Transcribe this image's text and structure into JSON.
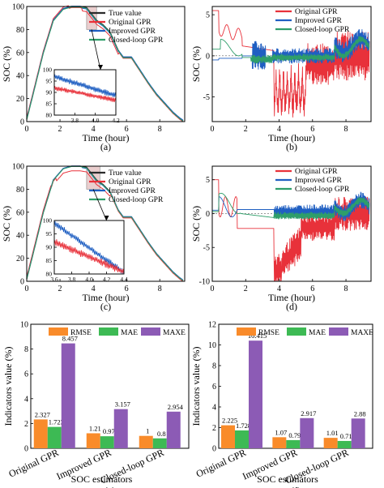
{
  "colors": {
    "true": "#2b2b2b",
    "orig": "#e8313a",
    "imp": "#1f5fc2",
    "cl": "#2e9e6a",
    "rmse": "#f98b2a",
    "mae": "#3dba54",
    "maxe": "#8c5bb5",
    "zoomfill": "#d9a6a6"
  },
  "chart_data": [
    {
      "panel": "(a)",
      "type": "line",
      "xlabel": "Time (hour)",
      "ylabel": "SOC (%)",
      "xlim": [
        0,
        9.5
      ],
      "ylim": [
        0,
        100
      ],
      "xticks": [
        "0",
        "2",
        "4",
        "6",
        "8"
      ],
      "yticks": [
        "0",
        "20",
        "40",
        "60",
        "80",
        "100"
      ],
      "legend_position": "top-right",
      "profile_x": [
        0,
        0.4,
        1.0,
        1.6,
        2.2,
        2.7,
        3.2,
        3.6,
        4.2,
        4.6,
        5.0,
        5.5,
        5.8,
        6.3,
        6.8,
        7.3,
        7.8,
        8.3,
        8.8,
        9.2,
        9.4
      ],
      "profile_y": [
        2,
        25,
        60,
        88,
        98,
        100,
        100,
        99,
        88,
        84,
        78,
        62,
        56,
        56,
        45,
        34,
        24,
        16,
        8,
        3,
        1
      ],
      "series": [
        {
          "name": "True value",
          "key": "true"
        },
        {
          "name": "Original GPR",
          "key": "orig"
        },
        {
          "name": "Improved GPR",
          "key": "imp"
        },
        {
          "name": "Closed-loop GPR",
          "key": "cl"
        }
      ],
      "inset": {
        "xlim": [
          3.6,
          4.2
        ],
        "ylim": [
          80,
          100
        ],
        "xticks": [
          "3.8",
          "4.0",
          "4.2"
        ],
        "yticks": [
          "80",
          "85",
          "90",
          "95",
          "100"
        ]
      }
    },
    {
      "panel": "(b)",
      "type": "line",
      "xlabel": "Time (hour)",
      "ylabel": "SOC (%)",
      "xlim": [
        0,
        9.5
      ],
      "ylim": [
        -8,
        6
      ],
      "xticks": [
        "0",
        "2",
        "4",
        "6",
        "8"
      ],
      "yticks": [
        "-5",
        "0",
        "5"
      ],
      "legend_position": "top-right",
      "series": [
        {
          "name": "Original GPR",
          "key": "orig"
        },
        {
          "name": "Improved GPR",
          "key": "imp"
        },
        {
          "name": "Closed-loop GPR",
          "key": "cl"
        }
      ]
    },
    {
      "panel": "(c)",
      "type": "line",
      "xlabel": "Time (hour)",
      "ylabel": "SOC (%)",
      "xlim": [
        0,
        9.5
      ],
      "ylim": [
        0,
        100
      ],
      "xticks": [
        "0",
        "2",
        "4",
        "6",
        "8"
      ],
      "yticks": [
        "0",
        "20",
        "40",
        "60",
        "80",
        "100"
      ],
      "legend_position": "top-right",
      "series": [
        {
          "name": "True value",
          "key": "true"
        },
        {
          "name": "Original GPR",
          "key": "orig"
        },
        {
          "name": "Improved GPR",
          "key": "imp"
        },
        {
          "name": "Closed-loop GPR",
          "key": "cl"
        }
      ],
      "inset": {
        "xlim": [
          3.6,
          4.4
        ],
        "ylim": [
          80,
          100
        ],
        "xticks": [
          "3.6",
          "3.8",
          "4.0",
          "4.2",
          "4.4"
        ],
        "yticks": [
          "80",
          "85",
          "90",
          "95",
          "100"
        ]
      }
    },
    {
      "panel": "(d)",
      "type": "line",
      "xlabel": "Time (hour)",
      "ylabel": "SOC (%)",
      "xlim": [
        0,
        9.5
      ],
      "ylim": [
        -10,
        7
      ],
      "xticks": [
        "0",
        "2",
        "4",
        "6",
        "8"
      ],
      "yticks": [
        "-10",
        "-5",
        "0",
        "5"
      ],
      "legend_position": "top-right",
      "series": [
        {
          "name": "Original GPR",
          "key": "orig"
        },
        {
          "name": "Improved GPR",
          "key": "imp"
        },
        {
          "name": "Closed-loop GPR",
          "key": "cl"
        }
      ]
    },
    {
      "panel": "(e)",
      "type": "bar",
      "xlabel": "SOC estimators",
      "ylabel": "Indicators value (%)",
      "ylim": [
        0,
        10
      ],
      "yticks": [
        "0",
        "2",
        "4",
        "6",
        "8",
        "10"
      ],
      "categories": [
        "Original GPR",
        "Improved GPR",
        "Closed-loop GPR"
      ],
      "series": [
        {
          "name": "RMSE",
          "key": "rmse",
          "values": [
            2.327,
            1.21,
            1
          ],
          "labels": [
            "2.327",
            "1.21",
            "1"
          ]
        },
        {
          "name": "MAE",
          "key": "mae",
          "values": [
            1.723,
            0.97,
            0.8
          ],
          "labels": [
            "1.723",
            "0.97",
            "0.8"
          ]
        },
        {
          "name": "MAXE",
          "key": "maxe",
          "values": [
            8.457,
            3.157,
            2.954
          ],
          "labels": [
            "8.457",
            "3.157",
            "2.954"
          ]
        }
      ]
    },
    {
      "panel": "(f)",
      "type": "bar",
      "xlabel": "SOC estimators",
      "ylabel": "Indicators value (%)",
      "ylim": [
        0,
        12
      ],
      "yticks": [
        "0",
        "2",
        "4",
        "6",
        "8",
        "10",
        "12"
      ],
      "categories": [
        "Original GPR",
        "Improved GPR",
        "Closed-loop GPR"
      ],
      "series": [
        {
          "name": "RMSE",
          "key": "rmse",
          "values": [
            2.225,
            1.07,
            1.01
          ],
          "labels": [
            "2.225",
            "1.07",
            "1.01"
          ]
        },
        {
          "name": "MAE",
          "key": "mae",
          "values": [
            1.728,
            0.79,
            0.71
          ],
          "labels": [
            "1.728",
            "0.79",
            "0.71"
          ]
        },
        {
          "name": "MAXE",
          "key": "maxe",
          "values": [
            10.415,
            2.917,
            2.88
          ],
          "labels": [
            "10.415",
            "2.917",
            "2.88"
          ]
        }
      ]
    }
  ]
}
